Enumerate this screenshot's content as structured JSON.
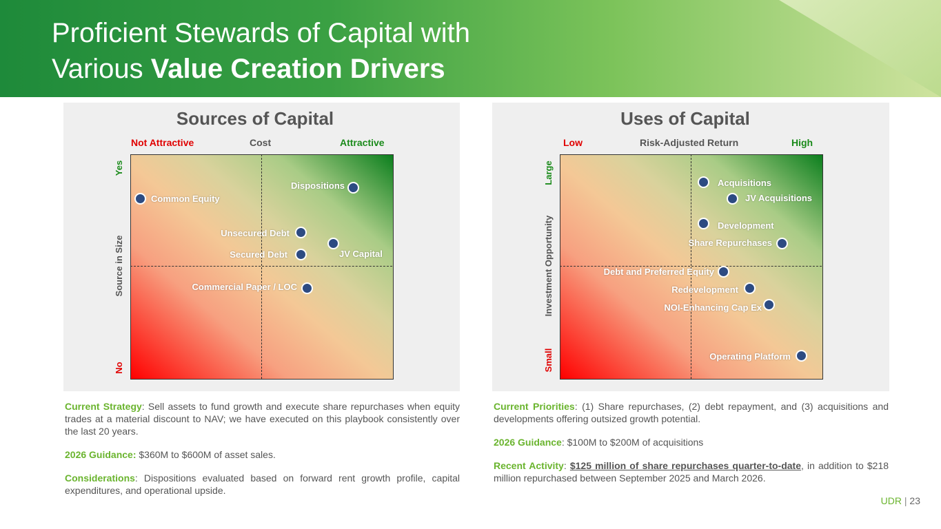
{
  "header": {
    "title_line1": "Proficient Stewards of Capital with",
    "title_line2_plain": "Various ",
    "title_line2_bold": "Value Creation Drivers"
  },
  "sources": {
    "title": "Sources of Capital",
    "x_low": "Not Attractive",
    "x_axis": "Cost",
    "x_high": "Attractive",
    "y_high": "Yes",
    "y_axis": "Source in Size",
    "y_low": "No",
    "points": [
      "Common Equity",
      "Dispositions",
      "Unsecured Debt",
      "Secured Debt",
      "JV Capital",
      "Commercial Paper / LOC"
    ],
    "notes": [
      {
        "label": "Current Strategy",
        "text": ": Sell assets to fund growth and execute share repurchases when equity trades at a material discount to NAV; we have executed on this playbook consistently over the last 20 years."
      },
      {
        "label": "2026 Guidance:",
        "text": " $360M to $600M of asset sales."
      },
      {
        "label": "Considerations",
        "text": ": Dispositions evaluated based on forward rent growth profile, capital expenditures, and operational upside."
      }
    ]
  },
  "uses": {
    "title": "Uses of Capital",
    "x_low": "Low",
    "x_axis": "Risk-Adjusted Return",
    "x_high": "High",
    "y_high": "Large",
    "y_axis": "Investment Opportunity",
    "y_low": "Small",
    "points": [
      "Acquisitions",
      "JV Acquisitions",
      "Development",
      "Share Repurchases",
      "Debt and Preferred Equity",
      "Redevelopment",
      "NOI-Enhancing Cap Ex",
      "Operating Platform"
    ],
    "notes": [
      {
        "label": "Current Priorities",
        "text": ": (1) Share repurchases, (2) debt repayment, and (3) acquisitions and developments offering outsized growth potential."
      },
      {
        "label": "2026 Guidance",
        "text": ": $100M to $200M of acquisitions"
      },
      {
        "label": "Recent Activity",
        "text": ": ",
        "link": "$125 million of share repurchases quarter-to-date",
        "tail": ", in addition to $218 million repurchased between September 2025 and March 2026."
      }
    ]
  },
  "footer": {
    "brand": "UDR",
    "separator": "|",
    "page": 23
  }
}
